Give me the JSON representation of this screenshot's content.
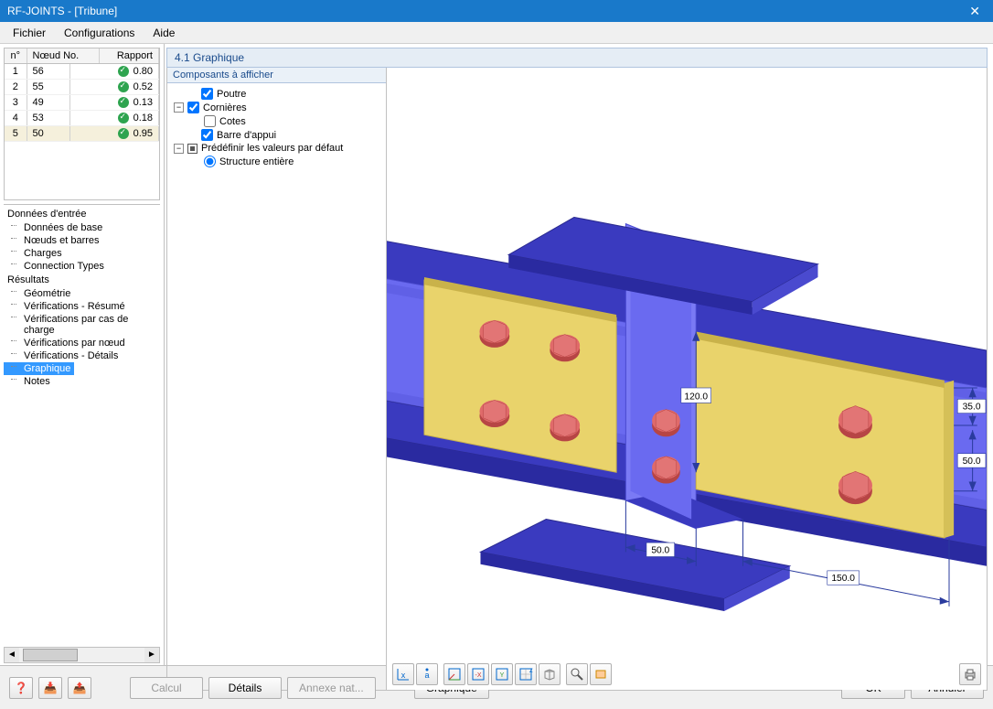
{
  "window": {
    "title": "RF-JOINTS - [Tribune]",
    "close_glyph": "✕"
  },
  "menubar": {
    "items": [
      "Fichier",
      "Configurations",
      "Aide"
    ]
  },
  "node_table": {
    "headers": {
      "n": "n°",
      "node": "Nœud No.",
      "rapport": "Rapport"
    },
    "rows": [
      {
        "n": "1",
        "node": "56",
        "ratio": "0.80",
        "ok": true
      },
      {
        "n": "2",
        "node": "55",
        "ratio": "0.52",
        "ok": true
      },
      {
        "n": "3",
        "node": "49",
        "ratio": "0.13",
        "ok": true
      },
      {
        "n": "4",
        "node": "53",
        "ratio": "0.18",
        "ok": true
      },
      {
        "n": "5",
        "node": "50",
        "ratio": "0.95",
        "ok": true
      }
    ],
    "selected_index": 4
  },
  "nav_tree": {
    "sections": [
      {
        "title": "Données d'entrée",
        "items": [
          "Données de base",
          "Nœuds et barres",
          "Charges",
          "Connection Types"
        ]
      },
      {
        "title": "Résultats",
        "items": [
          "Géométrie",
          "Vérifications - Résumé",
          "Vérifications par cas de charge",
          "Vérifications par nœud",
          "Vérifications - Détails",
          "Graphique",
          "Notes"
        ],
        "selected": "Graphique"
      }
    ]
  },
  "hscroll_thumb_glyph": "⁝⁝⁝",
  "panel": {
    "header": "4.1 Graphique",
    "components_header": "Composants à afficher",
    "items": {
      "poutre": "Poutre",
      "cornieres": "Cornières",
      "cotes": "Cotes",
      "barre_appui": "Barre d'appui",
      "predef": "Prédéfinir les valeurs par défaut",
      "structure": "Structure entière"
    },
    "states": {
      "poutre": true,
      "cornieres": true,
      "cotes": false,
      "barre_appui": true,
      "predef_partial": true,
      "structure_radio": true
    }
  },
  "dimensions": {
    "d1": "120.0",
    "d2": "35.0",
    "d3": "50.0",
    "d4": "50.0",
    "d5": "150.0"
  },
  "viewport_toolbar": {
    "buttons": [
      "axis-x",
      "axis-a",
      "view-xy",
      "view-xz",
      "view-yz",
      "view-iso",
      "box1",
      "search",
      "clip"
    ],
    "print": "print"
  },
  "footer": {
    "help_glyph": "?",
    "import_glyph": "⇩",
    "export_glyph": "⇪",
    "calcul": "Calcul",
    "details": "Détails",
    "annexe": "Annexe nat...",
    "graphique": "Graphique",
    "ok": "OK",
    "annuler": "Annuler"
  },
  "colors": {
    "beam_side": "#6a6af0",
    "beam_top": "#3a3abf",
    "beam_edge": "#2a2aa0",
    "plate": "#e9d36b",
    "plate_edge": "#c9b24a",
    "bolt": "#e06a6a",
    "bolt_dark": "#b74545",
    "dim_line": "#2a3b9e"
  }
}
